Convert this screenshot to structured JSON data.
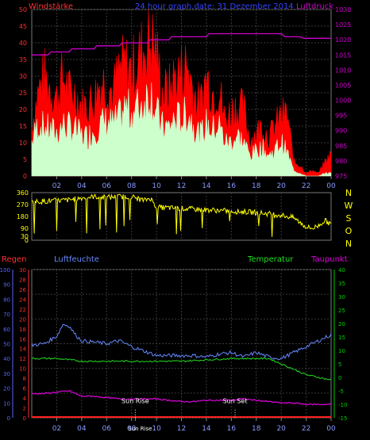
{
  "header": {
    "title": "24 hour graph.date: 31 Dezember 2014",
    "left_label": "Windstärke",
    "right_label": "Luftdruck"
  },
  "panel3_labels": {
    "rain": "Regen",
    "humidity": "Luftfeuchte",
    "temperature": "Temperatur",
    "dewpoint": "Taupunkt"
  },
  "colors": {
    "wind_gust": "#ff0000",
    "wind_avg": "#ccffcc",
    "pressure": "#cc00cc",
    "direction": "#ffff00",
    "rain": "#ff2020",
    "humidity": "#6688ff",
    "temperature": "#22dd22",
    "dewpoint": "#dd00dd",
    "axis_left": "#ff3030",
    "axis_right": "#cc00cc",
    "axis_hum": "#5566ff",
    "axis_temp": "#00cc00",
    "axis_dir": "#ffff00",
    "grid": "#3a3a3a",
    "xaxis": "#8899ff"
  },
  "chart_data": [
    {
      "type": "line",
      "title": "24 hour graph.date: 31 Dezember 2014",
      "ylabel": "Windstärke",
      "y2label": "Luftdruck",
      "ylim": [
        0,
        50
      ],
      "y2lim": [
        975,
        1030
      ],
      "yticks": [
        0,
        5,
        10,
        15,
        20,
        25,
        30,
        35,
        40,
        45,
        50
      ],
      "y2ticks": [
        975,
        980,
        985,
        990,
        995,
        1000,
        1005,
        1010,
        1015,
        1020,
        1025,
        1030
      ],
      "xticks": [
        "02",
        "04",
        "06",
        "08",
        "10",
        "12",
        "14",
        "16",
        "18",
        "20",
        "22",
        "00"
      ],
      "series": [
        {
          "name": "Wind gust",
          "x": [
            0,
            0.5,
            1,
            1.5,
            2,
            2.5,
            3,
            3.5,
            4,
            4.5,
            5,
            5.5,
            6,
            6.5,
            7,
            7.5,
            8,
            8.5,
            9,
            9.5,
            10,
            10.5,
            11,
            11.5,
            12,
            12.5,
            13,
            13.5,
            14,
            14.5,
            15,
            15.5,
            16,
            16.5,
            17,
            17.5,
            18,
            18.5,
            19,
            19.5,
            20,
            20.5,
            21,
            21.5,
            22,
            22.5,
            23,
            23.5,
            24
          ],
          "values": [
            18,
            30,
            36,
            32,
            28,
            36,
            30,
            30,
            25,
            26,
            28,
            34,
            34,
            30,
            38,
            40,
            38,
            42,
            46,
            50,
            44,
            30,
            31,
            36,
            38,
            40,
            30,
            25,
            36,
            30,
            32,
            20,
            24,
            25,
            24,
            13,
            16,
            18,
            14,
            18,
            22,
            22,
            5,
            4,
            1,
            2,
            1,
            5,
            8
          ]
        },
        {
          "name": "Wind avg",
          "x": [
            0,
            0.5,
            1,
            1.5,
            2,
            2.5,
            3,
            3.5,
            4,
            4.5,
            5,
            5.5,
            6,
            6.5,
            7,
            7.5,
            8,
            8.5,
            9,
            9.5,
            10,
            10.5,
            11,
            11.5,
            12,
            12.5,
            13,
            13.5,
            14,
            14.5,
            15,
            15.5,
            16,
            16.5,
            17,
            17.5,
            18,
            18.5,
            19,
            19.5,
            20,
            20.5,
            21,
            21.5,
            22,
            22.5,
            23,
            23.5,
            24
          ],
          "values": [
            12,
            18,
            17,
            16,
            15,
            18,
            17,
            16,
            14,
            14,
            16,
            18,
            19,
            18,
            20,
            24,
            22,
            24,
            26,
            30,
            22,
            17,
            17,
            20,
            20,
            22,
            18,
            14,
            18,
            16,
            18,
            12,
            12,
            14,
            12,
            7,
            9,
            10,
            7,
            9,
            12,
            8,
            2,
            1,
            0,
            0,
            0,
            1,
            1
          ]
        },
        {
          "name": "Luftdruck",
          "x": [
            0,
            1.3,
            1.5,
            3,
            3.2,
            5,
            5.2,
            7,
            7.3,
            9.3,
            9.5,
            11,
            11.2,
            14,
            14.2,
            20,
            20.3,
            21.5,
            21.8,
            24
          ],
          "values": [
            1015,
            1015,
            1016,
            1016,
            1017,
            1017,
            1018,
            1018,
            1019,
            1019,
            1020,
            1020,
            1021,
            1021,
            1022,
            1022,
            1021,
            1021,
            1020.5,
            1020.5
          ]
        }
      ]
    },
    {
      "type": "line",
      "title": "",
      "ylabel": "",
      "y2label": "N W S O N",
      "ylim": [
        0,
        360
      ],
      "yticks": [
        0,
        30,
        90,
        180,
        270,
        360
      ],
      "direction_labels": [
        "N",
        "W",
        "S",
        "O",
        "N"
      ],
      "series": [
        {
          "name": "Wind direction",
          "x": [
            0,
            1,
            2,
            3,
            4,
            5,
            6,
            7,
            8,
            9,
            9.5,
            10,
            11,
            12,
            13,
            14,
            15,
            16,
            17,
            18,
            19,
            20,
            21,
            22,
            22.5,
            23,
            23.5,
            24
          ],
          "values": [
            290,
            295,
            300,
            305,
            320,
            330,
            325,
            330,
            330,
            300,
            320,
            250,
            245,
            240,
            235,
            230,
            225,
            220,
            215,
            210,
            200,
            190,
            170,
            100,
            90,
            110,
            150,
            120
          ]
        }
      ]
    },
    {
      "type": "line",
      "title": "",
      "ylabel": "Regen",
      "y2label": "Taupunkt",
      "ylim": [
        0,
        30
      ],
      "yticks": [
        0,
        2,
        4,
        6,
        8,
        10,
        12,
        14,
        16,
        18,
        20,
        22,
        24,
        26,
        28,
        30
      ],
      "hum_ticks": [
        0,
        10,
        20,
        30,
        40,
        50,
        60,
        70,
        80,
        90,
        100
      ],
      "temp_ticks": [
        -15,
        -10,
        -5,
        0,
        5,
        10,
        15,
        20,
        25,
        30,
        35,
        40
      ],
      "xticks": [
        "02",
        "04",
        "06",
        "08",
        "Sun Rise",
        "10",
        "12",
        "14",
        "16",
        "18",
        "20",
        "22",
        "00"
      ],
      "annotations": [
        "Sun Rise",
        "Sun Set"
      ],
      "series": [
        {
          "name": "Regen",
          "x": [
            0,
            24
          ],
          "values": [
            0,
            0
          ]
        },
        {
          "name": "Luftfeuchte",
          "x": [
            0,
            1,
            2,
            2.5,
            3,
            3.5,
            4,
            5,
            6,
            7,
            8,
            9,
            10,
            11,
            12,
            13,
            14,
            15,
            16,
            17,
            18,
            19,
            20,
            21,
            22,
            23,
            24
          ],
          "values": [
            49,
            50,
            55,
            63,
            62,
            56,
            52,
            51,
            50,
            52,
            48,
            45,
            42,
            42,
            42,
            42,
            41,
            43,
            44,
            41,
            44,
            41,
            40,
            44,
            48,
            52,
            56
          ]
        },
        {
          "name": "Temperatur",
          "x": [
            0,
            2,
            4,
            6,
            8,
            10,
            12,
            14,
            16,
            18,
            19,
            20,
            21,
            22,
            23,
            24
          ],
          "values": [
            7,
            7,
            6,
            6,
            6,
            6,
            6,
            6.5,
            7,
            7,
            7,
            5,
            3,
            1,
            0,
            -1
          ]
        },
        {
          "name": "Taupunkt",
          "x": [
            0,
            1,
            2,
            3,
            3.5,
            4,
            5,
            6,
            7,
            8,
            9,
            10,
            11,
            12,
            13,
            14,
            15,
            16,
            17,
            18,
            19,
            20,
            21,
            22,
            23,
            24
          ],
          "values": [
            -6,
            -6,
            -5.5,
            -5,
            -6,
            -7,
            -7,
            -7.5,
            -8,
            -8,
            -8,
            -8,
            -8.5,
            -9,
            -9,
            -8.5,
            -8.5,
            -8.5,
            -8,
            -8.5,
            -9,
            -9.5,
            -9.5,
            -10,
            -10,
            -10
          ]
        }
      ]
    }
  ]
}
